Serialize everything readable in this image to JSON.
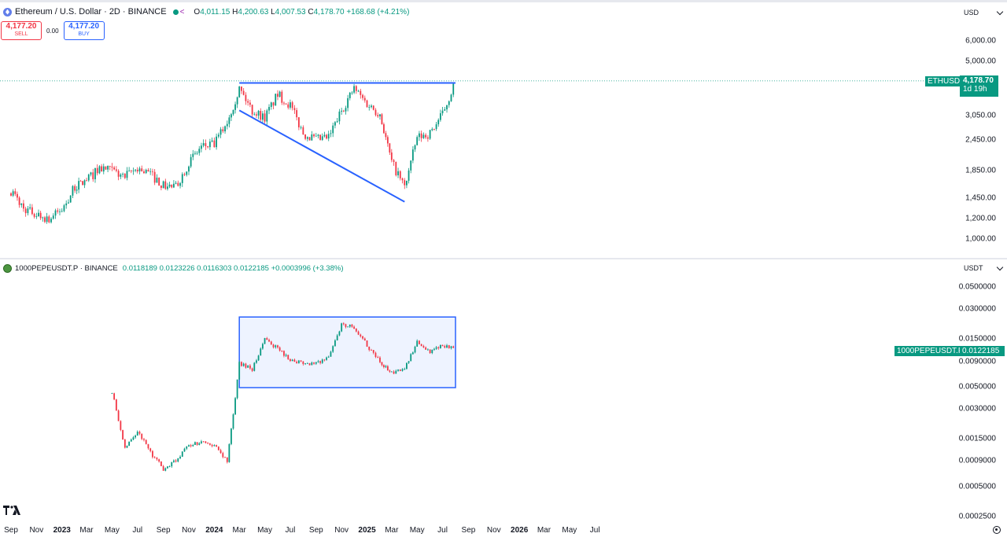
{
  "eth_pane": {
    "title": "Ethereum / U.S. Dollar · 2D · BINANCE",
    "ohlc": {
      "o_label": "O",
      "o": "4,011.15",
      "h_label": "H",
      "h": "4,200.63",
      "l_label": "L",
      "l": "4,007.53",
      "c_label": "C",
      "c": "4,178.70",
      "change": "+168.68 (+4.21%)"
    },
    "sell": {
      "price": "4,177.20",
      "label": "SELL"
    },
    "spread": "0.00",
    "buy": {
      "price": "4,177.20",
      "label": "BUY"
    },
    "currency": "USD",
    "axis_ticks": [
      "6,000.00",
      "5,000.00",
      "3,050.00",
      "2,450.00",
      "1,850.00",
      "1,450.00",
      "1,200.00",
      "1,000.00"
    ],
    "symbol_tag": "ETHUSD",
    "last_price": "4,178.70",
    "countdown": "1d 19h",
    "colors": {
      "up": "#089981",
      "down": "#f23645",
      "drawing": "#2962ff"
    }
  },
  "pepe_pane": {
    "title": "1000PEPEUSDT.P · BINANCE",
    "ohlc": {
      "o": "0.0118189",
      "h": "0.0123226",
      "l": "0.0116303",
      "c": "0.0122185",
      "change": "+0.0003996 (+3.38%)"
    },
    "currency": "USDT",
    "axis_ticks": [
      "0.0500000",
      "0.0300000",
      "0.0150000",
      "0.0090000",
      "0.0050000",
      "0.0030000",
      "0.0015000",
      "0.0009000",
      "0.0005000",
      "0.0002500"
    ],
    "symbol_tag": "1000PEPEUSDT.P",
    "last_price": "0.0122185"
  },
  "time_axis": [
    "Sep",
    "Nov",
    "2023",
    "Mar",
    "May",
    "Jul",
    "Sep",
    "Nov",
    "2024",
    "Mar",
    "May",
    "Jul",
    "Sep",
    "Nov",
    "2025",
    "Mar",
    "May",
    "Jul",
    "Sep",
    "Nov",
    "2026",
    "Mar",
    "May",
    "Jul"
  ],
  "time_axis_bold": [
    "2023",
    "2024",
    "2025",
    "2026"
  ],
  "chart_data": [
    {
      "type": "candlestick",
      "symbol": "ETHUSD",
      "y_scale": "log",
      "ylim": [
        900,
        7000
      ],
      "series_close": [
        [
          "2022-09-01",
          1550
        ],
        [
          "2022-10-01",
          1320
        ],
        [
          "2022-11-01",
          1250
        ],
        [
          "2022-12-01",
          1200
        ],
        [
          "2023-01-01",
          1300
        ],
        [
          "2023-02-01",
          1600
        ],
        [
          "2023-03-01",
          1700
        ],
        [
          "2023-04-01",
          1900
        ],
        [
          "2023-05-01",
          1850
        ],
        [
          "2023-06-01",
          1750
        ],
        [
          "2023-07-01",
          1900
        ],
        [
          "2023-08-01",
          1800
        ],
        [
          "2023-09-01",
          1620
        ],
        [
          "2023-10-01",
          1600
        ],
        [
          "2023-11-01",
          2000
        ],
        [
          "2023-12-01",
          2300
        ],
        [
          "2024-01-01",
          2350
        ],
        [
          "2024-02-01",
          2900
        ],
        [
          "2024-03-01",
          3900
        ],
        [
          "2024-04-01",
          3200
        ],
        [
          "2024-05-01",
          3000
        ],
        [
          "2024-06-01",
          3700
        ],
        [
          "2024-07-01",
          3350
        ],
        [
          "2024-08-01",
          2600
        ],
        [
          "2024-09-01",
          2450
        ],
        [
          "2024-10-01",
          2500
        ],
        [
          "2024-11-01",
          3200
        ],
        [
          "2024-12-01",
          3900
        ],
        [
          "2025-01-01",
          3400
        ],
        [
          "2025-02-01",
          3100
        ],
        [
          "2025-03-01",
          2000
        ],
        [
          "2025-04-01",
          1600
        ],
        [
          "2025-05-01",
          2500
        ],
        [
          "2025-06-01",
          2600
        ],
        [
          "2025-07-01",
          3100
        ],
        [
          "2025-08-01",
          4178.7
        ]
      ],
      "annotations": [
        {
          "kind": "trendline",
          "from": [
            "2024-03-01",
            4100
          ],
          "to": [
            "2025-08-01",
            4100
          ]
        },
        {
          "kind": "trendline",
          "from": [
            "2024-03-01",
            3200
          ],
          "to": [
            "2025-04-01",
            1400
          ]
        }
      ]
    },
    {
      "type": "candlestick",
      "symbol": "1000PEPEUSDT.P",
      "y_scale": "log",
      "ylim": [
        0.00025,
        0.05
      ],
      "series_close": [
        [
          "2023-05-01",
          0.0045
        ],
        [
          "2023-06-01",
          0.0012
        ],
        [
          "2023-07-01",
          0.0018
        ],
        [
          "2023-08-01",
          0.0011
        ],
        [
          "2023-09-01",
          0.00075
        ],
        [
          "2023-10-01",
          0.0009
        ],
        [
          "2023-11-01",
          0.0013
        ],
        [
          "2023-12-01",
          0.0014
        ],
        [
          "2024-01-01",
          0.0013
        ],
        [
          "2024-02-01",
          0.0009
        ],
        [
          "2024-03-01",
          0.0085
        ],
        [
          "2024-04-01",
          0.0075
        ],
        [
          "2024-05-01",
          0.015
        ],
        [
          "2024-06-01",
          0.012
        ],
        [
          "2024-07-01",
          0.0095
        ],
        [
          "2024-08-01",
          0.0085
        ],
        [
          "2024-09-01",
          0.0085
        ],
        [
          "2024-10-01",
          0.01
        ],
        [
          "2024-11-01",
          0.021
        ],
        [
          "2024-12-01",
          0.02
        ],
        [
          "2025-01-01",
          0.013
        ],
        [
          "2025-02-01",
          0.009
        ],
        [
          "2025-03-01",
          0.0068
        ],
        [
          "2025-04-01",
          0.0075
        ],
        [
          "2025-05-01",
          0.014
        ],
        [
          "2025-06-01",
          0.011
        ],
        [
          "2025-07-01",
          0.013
        ],
        [
          "2025-08-01",
          0.0122185
        ]
      ],
      "annotations": [
        {
          "kind": "rectangle",
          "from": [
            "2024-03-01",
            0.025
          ],
          "to": [
            "2025-08-01",
            0.0049
          ]
        }
      ]
    }
  ]
}
